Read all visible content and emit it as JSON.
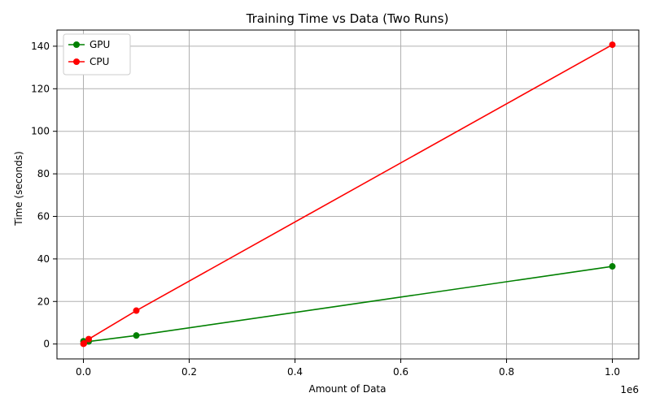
{
  "chart_data": {
    "type": "line",
    "title": "Training Time vs Data (Two Runs)",
    "xlabel": "Amount of Data",
    "ylabel": "Time (seconds)",
    "x_offset_label": "1e6",
    "x_ticks": [
      0.0,
      0.2,
      0.4,
      0.6,
      0.8,
      1.0
    ],
    "x_tick_labels": [
      "0.0",
      "0.2",
      "0.4",
      "0.6",
      "0.8",
      "1.0"
    ],
    "y_ticks": [
      0,
      20,
      40,
      60,
      80,
      100,
      120,
      140
    ],
    "y_tick_labels": [
      "0",
      "20",
      "40",
      "60",
      "80",
      "100",
      "120",
      "140"
    ],
    "xlim": [
      -0.05,
      1.05
    ],
    "ylim": [
      -7,
      147.6
    ],
    "grid": true,
    "legend_position": "top-left",
    "series": [
      {
        "name": "GPU",
        "color": "#008000",
        "x": [
          100,
          1000,
          10000,
          100000,
          1000000
        ],
        "y": [
          1.3,
          0.8,
          1.2,
          4.0,
          36.5
        ]
      },
      {
        "name": "CPU",
        "color": "#ff0000",
        "x": [
          100,
          1000,
          10000,
          100000,
          1000000
        ],
        "y": [
          0.1,
          0.3,
          2.3,
          15.7,
          140.7
        ]
      }
    ]
  }
}
